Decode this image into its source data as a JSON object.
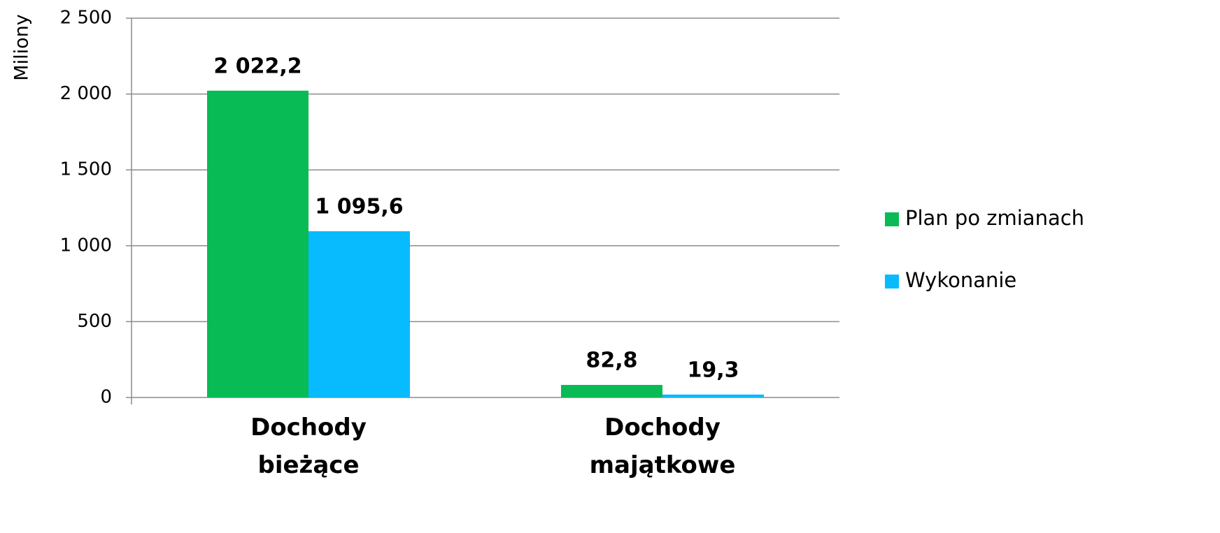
{
  "chart_data": {
    "type": "bar",
    "y_axis_label": "Miliony",
    "categories": [
      "Dochody bieżące",
      "Dochody majątkowe"
    ],
    "series": [
      {
        "name": "Plan po zmianach",
        "color": "#08bb55",
        "values": [
          2022.2,
          82.8
        ],
        "value_labels": [
          "2 022,2",
          "82,8"
        ]
      },
      {
        "name": "Wykonanie",
        "color": "#08bbff",
        "values": [
          1095.6,
          19.3
        ],
        "value_labels": [
          "1 095,6",
          "19,3"
        ]
      }
    ],
    "ylim": [
      0,
      2500
    ],
    "yticks": [
      0,
      500,
      {
        "value": 1000,
        "label": "1 000"
      },
      {
        "value": 1500,
        "label": "1 500"
      },
      {
        "value": 2000,
        "label": "2 000"
      },
      {
        "value": 2500,
        "label": "2 500"
      }
    ],
    "grid": true,
    "legend": "right"
  }
}
